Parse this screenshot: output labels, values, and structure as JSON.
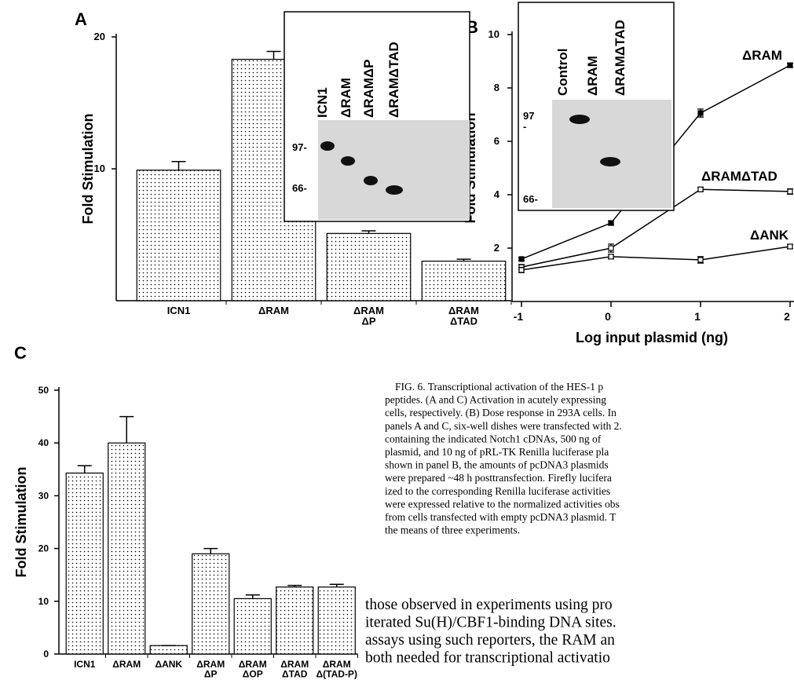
{
  "chart_data": [
    {
      "type": "bar",
      "panel": "A",
      "y_label": "Fold Stimulation",
      "categories": [
        "ICN1",
        "ΔRAM",
        "ΔRAM\nΔP",
        "ΔRAM\nΔTAD"
      ],
      "values": [
        9.9,
        18.3,
        5.1,
        3.0
      ],
      "errors": [
        0.65,
        0.6,
        0.2,
        0.15
      ],
      "ylim": [
        0,
        20
      ],
      "yticks": [
        10,
        20
      ],
      "color": "#000000",
      "inset": {
        "lanes": [
          "ICN1",
          "ΔRAM",
          "ΔRAMΔP",
          "ΔRAMΔTAD"
        ],
        "markers": [
          "97-",
          "66-"
        ]
      }
    },
    {
      "type": "line",
      "panel": "B",
      "y_label": "Fold Stimulation",
      "x_label": "Log input plasmid (ng)",
      "x": [
        -1,
        0,
        1,
        2
      ],
      "xlim": [
        -1,
        2
      ],
      "xticks": [
        -1,
        0,
        1,
        2
      ],
      "ylim": [
        0,
        10
      ],
      "yticks": [
        2,
        4,
        6,
        8,
        10
      ],
      "series": [
        {
          "name": "ΔRAM",
          "color": "#000000",
          "values": [
            1.59,
            2.94,
            7.06,
            8.85
          ],
          "errors": [
            0.05,
            0.08,
            0.15,
            0.08
          ]
        },
        {
          "name": "ΔRAMΔTAD",
          "color": "#000000",
          "values": [
            1.29,
            2.0,
            4.2,
            4.12
          ],
          "errors": [
            0.1,
            0.15,
            0.08,
            0.1
          ]
        },
        {
          "name": "ΔANK",
          "color": "#000000",
          "values": [
            1.18,
            1.68,
            1.56,
            2.06
          ],
          "errors": [
            0.1,
            0.08,
            0.12,
            0.08
          ]
        }
      ],
      "inset": {
        "lanes": [
          "Control",
          "ΔRAM",
          "ΔRAMΔTAD"
        ],
        "markers": [
          "97\n-",
          "66-"
        ]
      }
    },
    {
      "type": "bar",
      "panel": "C",
      "y_label": "Fold Stimulation",
      "categories": [
        "ICN1",
        "ΔRAM",
        "ΔANK",
        "ΔRAM\nΔP",
        "ΔRAM\nΔOP",
        "ΔRAM\nΔTAD",
        "ΔRAM\nΔ(TAD-P)"
      ],
      "values": [
        34.3,
        40.0,
        1.6,
        19.0,
        10.5,
        12.7,
        12.7
      ],
      "errors": [
        1.4,
        5.0,
        0.0,
        1.0,
        0.7,
        0.3,
        0.5
      ],
      "ylim": [
        0,
        50
      ],
      "yticks": [
        0,
        10,
        20,
        30,
        40,
        50
      ],
      "color": "#000000"
    }
  ],
  "caption": [
    "FIG. 6. Transcriptional activation of the HES-1 p",
    "peptides. (A and C) Activation in acutely expressing",
    "cells, respectively. (B) Dose response in 293A cells. In",
    "panels A and C, six-well dishes were transfected with 2.",
    "containing the indicated Notch1 cDNAs, 500 ng of",
    "plasmid, and 10 ng of pRL-TK Renilla luciferase pla",
    "shown in panel B, the amounts of pcDNA3 plasmids",
    "were prepared ~48 h posttransfection. Firefly lucifera",
    "ized to the corresponding Renilla luciferase activities",
    "were expressed relative to the normalized activities obs",
    "from cells transfected with empty pcDNA3 plasmid. T",
    "the means of three experiments."
  ],
  "body": [
    "those observed in experiments using pro",
    "iterated Su(H)/CBF1-binding DNA sites.",
    "assays using such reporters, the RAM an",
    "both needed for transcriptional activatio"
  ]
}
